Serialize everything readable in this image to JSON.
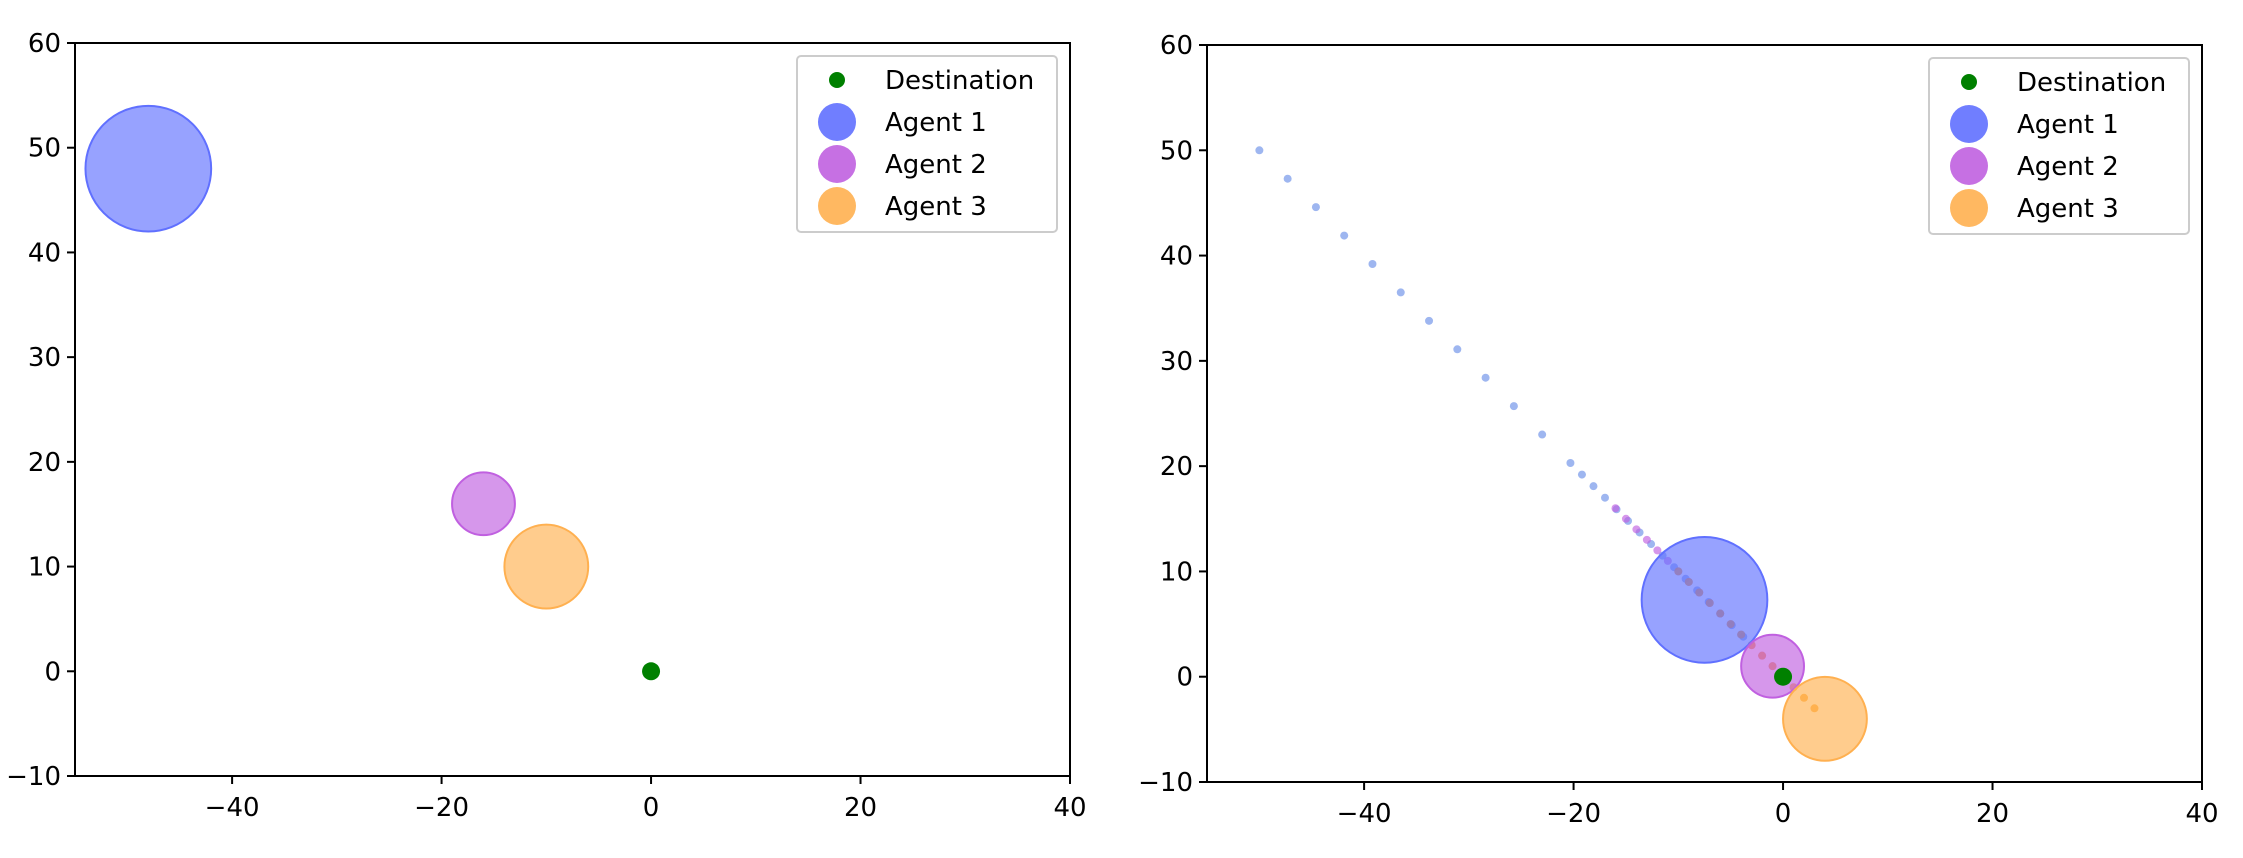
{
  "colors": {
    "destination": "#008000",
    "agent_1": "#6070ff",
    "agent_2": "#c060e0",
    "agent_3": "#ffb050",
    "axis": "#000000",
    "legend_border": "#cccccc"
  },
  "legend": {
    "placement": "top-right",
    "entries": [
      "Destination",
      "Agent 1",
      "Agent 2",
      "Agent 3"
    ]
  },
  "chart_data": [
    {
      "type": "scatter",
      "title": "",
      "xlabel": "",
      "ylabel": "",
      "xlim": [
        -55,
        40
      ],
      "ylim": [
        -10,
        60
      ],
      "xticks": [
        -40,
        -20,
        0,
        20,
        40
      ],
      "yticks": [
        -10,
        0,
        10,
        20,
        30,
        40,
        50,
        60
      ],
      "xtick_labels": [
        "−40",
        "−20",
        "0",
        "20",
        "40"
      ],
      "ytick_labels": [
        "−10",
        "0",
        "10",
        "20",
        "30",
        "40",
        "50",
        "60"
      ],
      "grid": false,
      "legend": [
        "Destination",
        "Agent 1",
        "Agent 2",
        "Agent 3"
      ],
      "destination": {
        "name": "Destination",
        "x": 0,
        "y": 0
      },
      "agents": [
        {
          "name": "Agent 1",
          "x": -48,
          "y": 48,
          "radius": 6
        },
        {
          "name": "Agent 2",
          "x": -16,
          "y": 16,
          "radius": 3
        },
        {
          "name": "Agent 3",
          "x": -10,
          "y": 10,
          "radius": 4
        }
      ],
      "trails": []
    },
    {
      "type": "scatter",
      "title": "",
      "xlabel": "",
      "ylabel": "",
      "xlim": [
        -55,
        40
      ],
      "ylim": [
        -10,
        60
      ],
      "xticks": [
        -40,
        -20,
        0,
        20,
        40
      ],
      "yticks": [
        -10,
        0,
        10,
        20,
        30,
        40,
        50,
        60
      ],
      "xtick_labels": [
        "−40",
        "−20",
        "0",
        "20",
        "40"
      ],
      "ytick_labels": [
        "−10",
        "0",
        "10",
        "20",
        "30",
        "40",
        "50",
        "60"
      ],
      "grid": false,
      "legend": [
        "Destination",
        "Agent 1",
        "Agent 2",
        "Agent 3"
      ],
      "destination": {
        "name": "Destination",
        "x": 0,
        "y": 0
      },
      "agents": [
        {
          "name": "Agent 1",
          "x": -7.5,
          "y": 7.3,
          "radius": 6
        },
        {
          "name": "Agent 2",
          "x": -1,
          "y": 1,
          "radius": 3
        },
        {
          "name": "Agent 3",
          "x": 4,
          "y": -4,
          "radius": 4
        }
      ],
      "trails": [
        {
          "name": "Agent 1",
          "points": [
            [
              -50,
              50
            ],
            [
              -47.3,
              47.3
            ],
            [
              -44.6,
              44.6
            ],
            [
              -41.9,
              41.9
            ],
            [
              -39.2,
              39.2
            ],
            [
              -36.5,
              36.5
            ],
            [
              -33.8,
              33.8
            ],
            [
              -31.1,
              31.1
            ],
            [
              -28.4,
              28.4
            ],
            [
              -25.7,
              25.7
            ],
            [
              -23,
              23
            ],
            [
              -20.3,
              20.3
            ],
            [
              -19.2,
              19.2
            ],
            [
              -18.1,
              18.1
            ],
            [
              -17,
              17
            ],
            [
              -15.9,
              15.9
            ],
            [
              -14.8,
              14.8
            ],
            [
              -13.7,
              13.7
            ],
            [
              -12.6,
              12.6
            ],
            [
              -11.5,
              11.5
            ],
            [
              -10.4,
              10.4
            ],
            [
              -9.3,
              9.3
            ],
            [
              -8.2,
              8.2
            ],
            [
              -7.1,
              7.1
            ],
            [
              -6,
              6
            ],
            [
              -4.9,
              4.9
            ],
            [
              -3.8,
              3.8
            ]
          ]
        },
        {
          "name": "Agent 2",
          "points": [
            [
              -16,
              16
            ],
            [
              -15,
              15
            ],
            [
              -14,
              14
            ],
            [
              -13,
              13
            ],
            [
              -12,
              12
            ],
            [
              -11,
              11
            ],
            [
              -10,
              10
            ],
            [
              -9,
              9
            ],
            [
              -8,
              8
            ],
            [
              -7,
              7
            ],
            [
              -6,
              6
            ],
            [
              -5,
              5
            ],
            [
              -4,
              4
            ],
            [
              -3,
              3
            ],
            [
              -2,
              2
            ],
            [
              -1,
              1
            ]
          ]
        },
        {
          "name": "Agent 3",
          "points": [
            [
              -10,
              10
            ],
            [
              -9,
              9
            ],
            [
              -8,
              8
            ],
            [
              -7,
              7
            ],
            [
              -6,
              6
            ],
            [
              -5,
              5
            ],
            [
              -4,
              4
            ],
            [
              -3,
              3
            ],
            [
              -2,
              2
            ],
            [
              -1,
              1
            ],
            [
              0,
              0
            ],
            [
              1,
              -1
            ],
            [
              2,
              -2
            ],
            [
              3,
              -3
            ]
          ]
        }
      ]
    }
  ]
}
